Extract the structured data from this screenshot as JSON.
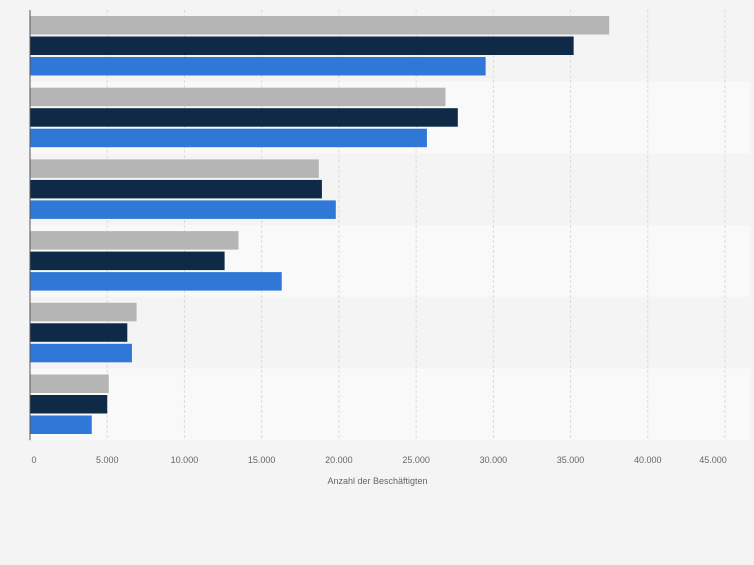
{
  "chart_data": {
    "type": "bar",
    "orientation": "horizontal",
    "title": "",
    "categories": [
      "",
      "",
      "",
      "",
      "",
      ""
    ],
    "series": [
      {
        "color": "#b5b5b5",
        "values": [
          37500,
          26900,
          18700,
          13500,
          6900,
          5100
        ]
      },
      {
        "color": "#0e2a47",
        "values": [
          35200,
          27700,
          18900,
          12600,
          6300,
          5000
        ]
      },
      {
        "color": "#2f78d7",
        "values": [
          29500,
          25700,
          19800,
          16300,
          6600,
          4000
        ]
      }
    ],
    "xlabel": "Anzahl der Beschäftigten",
    "ylabel": "",
    "xlim": [
      0,
      45000
    ],
    "xticks": [
      "0",
      "5.000",
      "10.000",
      "15.000",
      "20.000",
      "25.000",
      "30.000",
      "35.000",
      "40.000",
      "45.000"
    ],
    "grid": true,
    "legend": "none",
    "band_colors": [
      "#f4f4f4",
      "#f9f9f9"
    ],
    "grid_color": "#dcdcdc",
    "axis_color": "#555555",
    "label_color": "#666666"
  }
}
